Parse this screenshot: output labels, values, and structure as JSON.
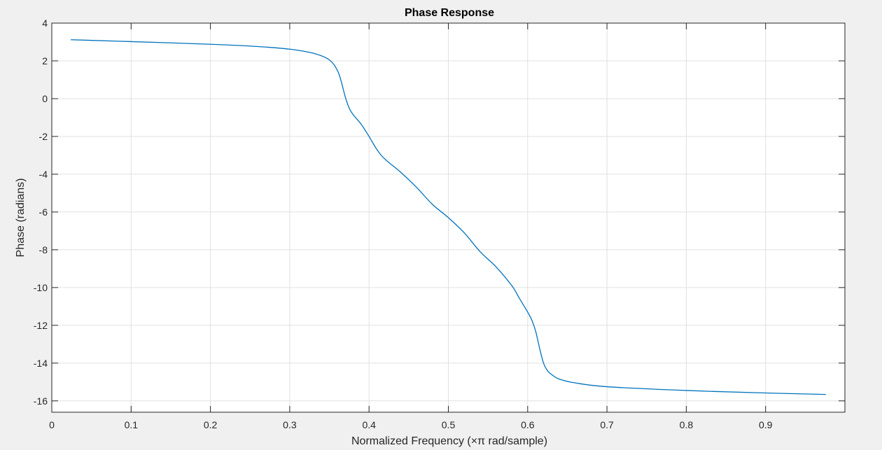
{
  "chart_data": {
    "type": "line",
    "title": "Phase Response",
    "xlabel": "Normalized  Frequency  (×π  rad/sample)",
    "ylabel": "Phase (radians)",
    "xlim": [
      0,
      1
    ],
    "ylim": [
      -16.6,
      4
    ],
    "xticks": [
      0,
      0.1,
      0.2,
      0.3,
      0.4,
      0.5,
      0.6,
      0.7,
      0.8,
      0.9
    ],
    "xtick_labels": [
      "0",
      "0.1",
      "0.2",
      "0.3",
      "0.4",
      "0.5",
      "0.6",
      "0.7",
      "0.8",
      "0.9"
    ],
    "yticks": [
      4,
      2,
      0,
      -2,
      -4,
      -6,
      -8,
      -10,
      -12,
      -14,
      -16
    ],
    "ytick_labels": [
      "4",
      "2",
      "0",
      "-2",
      "-4",
      "-6",
      "-8",
      "-10",
      "-12",
      "-14",
      "-16"
    ],
    "grid": true,
    "series": [
      {
        "color": "#0072bd",
        "x": [
          0.024,
          0.1,
          0.2,
          0.26,
          0.3,
          0.33,
          0.35,
          0.36,
          0.365,
          0.37,
          0.375,
          0.38,
          0.39,
          0.4,
          0.41,
          0.42,
          0.44,
          0.46,
          0.48,
          0.5,
          0.52,
          0.54,
          0.56,
          0.58,
          0.59,
          0.6,
          0.605,
          0.61,
          0.615,
          0.62,
          0.625,
          0.63,
          0.64,
          0.66,
          0.7,
          0.8,
          0.9,
          0.976
        ],
        "y": [
          3.12,
          3.02,
          2.88,
          2.76,
          2.62,
          2.4,
          2.05,
          1.5,
          0.9,
          0.1,
          -0.5,
          -0.85,
          -1.35,
          -2.0,
          -2.7,
          -3.2,
          -3.9,
          -4.7,
          -5.6,
          -6.3,
          -7.1,
          -8.1,
          -8.9,
          -9.9,
          -10.6,
          -11.3,
          -11.7,
          -12.3,
          -13.2,
          -14.0,
          -14.4,
          -14.6,
          -14.85,
          -15.05,
          -15.25,
          -15.45,
          -15.58,
          -15.66
        ]
      }
    ]
  }
}
